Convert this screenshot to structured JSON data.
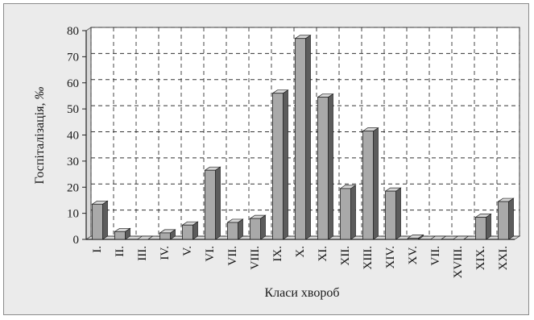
{
  "chart_data": {
    "type": "bar",
    "title": "",
    "xlabel": "Класи хвороб",
    "ylabel": "Госпіталізація, ‰",
    "ylabel_main": "Госпіталізація, ",
    "ylabel_unit": "‰",
    "ylim": [
      0,
      80
    ],
    "yticks": [
      0,
      10,
      20,
      30,
      40,
      50,
      60,
      70,
      80
    ],
    "grid": true,
    "style": "3d-column",
    "colors": {
      "bar_front": "#a9a9a9",
      "bar_side": "#5c5c5c",
      "bar_top": "#d6d6d6",
      "plot_background": "#ffffff",
      "frame_background": "#ebebeb",
      "grid": "#333333"
    },
    "categories": [
      "I.",
      "II.",
      "III.",
      "IV.",
      "V.",
      "VI.",
      "VII.",
      "VIII.",
      "IX.",
      "X.",
      "XI.",
      "XII.",
      "XIII.",
      "XIV.",
      "XV.",
      "VII.",
      "XVIII.",
      "XIX.",
      "XXI."
    ],
    "values": [
      13.5,
      3,
      0,
      2.5,
      5.5,
      26.5,
      6.5,
      8,
      56,
      77,
      54.5,
      19.5,
      41.5,
      18.5,
      0.5,
      0,
      0,
      8.5,
      14.5
    ]
  }
}
